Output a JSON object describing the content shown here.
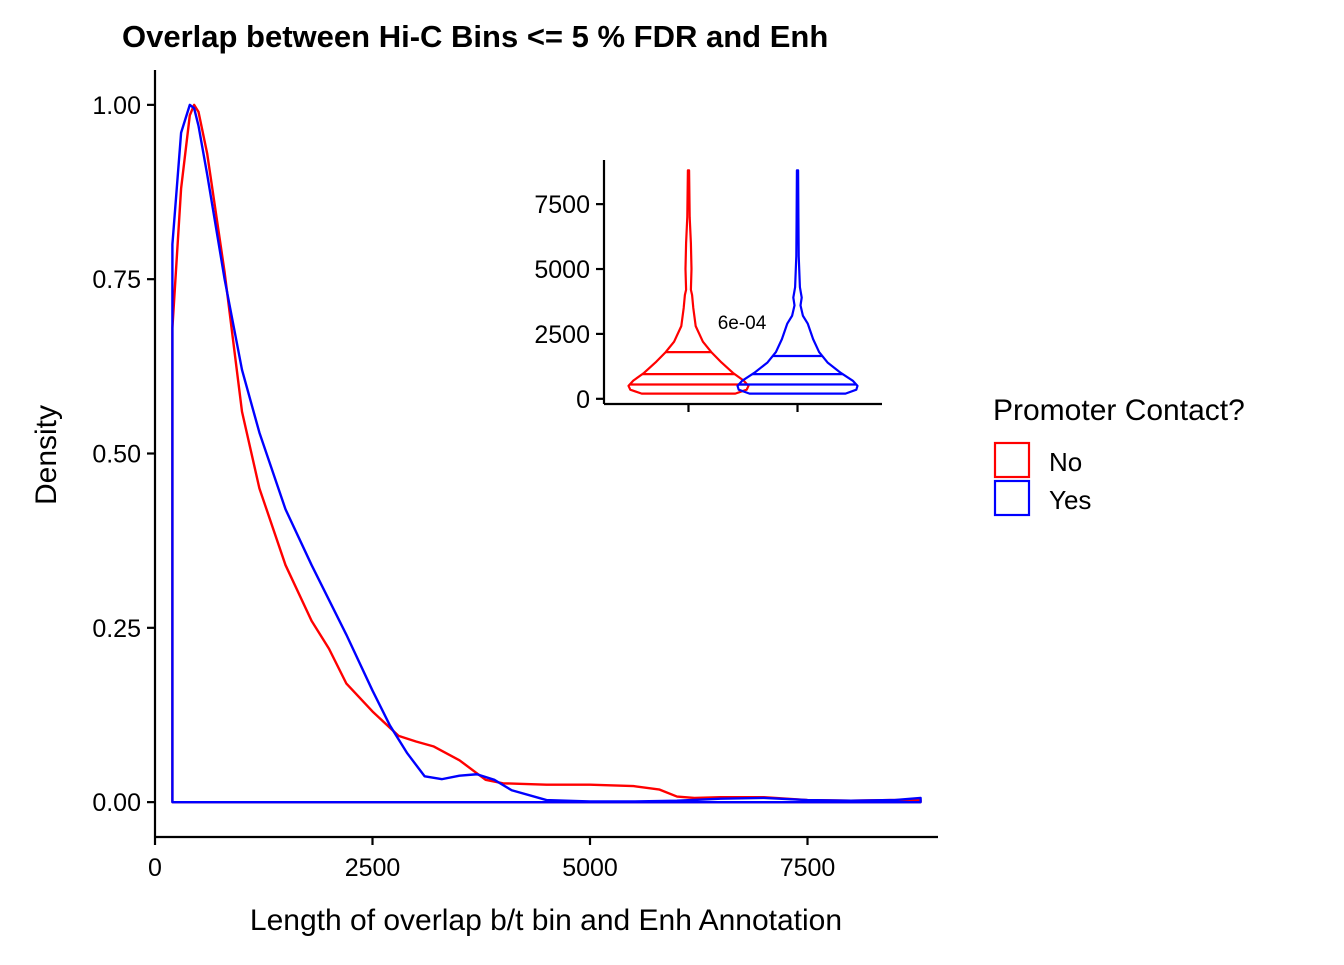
{
  "colors": {
    "No": "#ff0000",
    "Yes": "#0000ff",
    "axis": "#000000",
    "background": "#ffffff"
  },
  "chart_data": [
    {
      "type": "area",
      "kind": "density",
      "title": "Overlap between Hi-C Bins <= 5 % FDR and Enh",
      "xlabel": "Length of overlap b/t bin and Enh Annotation",
      "ylabel": "Density",
      "xlim": [
        0,
        9000
      ],
      "ylim": [
        -0.05,
        1.05
      ],
      "x_ticks": [
        0,
        2500,
        5000,
        7500
      ],
      "x_tick_labels": [
        "0",
        "2500",
        "5000",
        "7500"
      ],
      "y_ticks": [
        0,
        0.25,
        0.5,
        0.75,
        1
      ],
      "y_tick_labels": [
        "0.00",
        "0.25",
        "0.50",
        "0.75",
        "1.00"
      ],
      "grid": false,
      "legend": {
        "title": "Promoter Contact?",
        "position": "right",
        "entries": [
          "No",
          "Yes"
        ]
      },
      "series": [
        {
          "name": "No",
          "color": "#ff0000",
          "x": [
            200,
            200,
            300,
            400,
            450,
            500,
            600,
            800,
            1000,
            1200,
            1500,
            1800,
            2000,
            2200,
            2500,
            2800,
            3000,
            3200,
            3500,
            3800,
            4000,
            4500,
            5000,
            5500,
            5800,
            6000,
            6200,
            6500,
            7000,
            7500,
            8000,
            8500,
            8800,
            8800
          ],
          "y": [
            0,
            0.68,
            0.88,
            0.985,
            1.0,
            0.99,
            0.93,
            0.76,
            0.56,
            0.45,
            0.34,
            0.26,
            0.22,
            0.17,
            0.13,
            0.095,
            0.087,
            0.08,
            0.06,
            0.032,
            0.027,
            0.025,
            0.025,
            0.023,
            0.018,
            0.008,
            0.006,
            0.007,
            0.007,
            0.003,
            0.002,
            0.003,
            0.003,
            0
          ]
        },
        {
          "name": "Yes",
          "color": "#0000ff",
          "x": [
            200,
            200,
            300,
            400,
            450,
            500,
            600,
            800,
            1000,
            1200,
            1500,
            1800,
            2000,
            2200,
            2500,
            2700,
            2900,
            3100,
            3300,
            3500,
            3700,
            3900,
            4100,
            4500,
            5000,
            5500,
            6000,
            6500,
            7000,
            7500,
            8000,
            8500,
            8800,
            8800
          ],
          "y": [
            0,
            0.8,
            0.96,
            1.0,
            0.995,
            0.97,
            0.9,
            0.75,
            0.62,
            0.53,
            0.42,
            0.34,
            0.29,
            0.24,
            0.16,
            0.11,
            0.07,
            0.037,
            0.033,
            0.038,
            0.04,
            0.032,
            0.017,
            0.003,
            0.001,
            0.001,
            0.002,
            0.005,
            0.006,
            0.003,
            0.002,
            0.003,
            0.006,
            0
          ]
        }
      ]
    },
    {
      "type": "violin",
      "x_categories": [
        "No",
        "Yes"
      ],
      "ylim": [
        -200,
        9200
      ],
      "y_ticks": [
        0,
        2500,
        5000,
        7500
      ],
      "y_tick_labels": [
        "0",
        "2500",
        "5000",
        "7500"
      ],
      "annotation": "6e-04",
      "series": [
        {
          "name": "No",
          "color": "#ff0000",
          "quantiles": [
            550,
            950,
            1800
          ],
          "profile": [
            {
              "y": 200,
              "w": 0.78
            },
            {
              "y": 350,
              "w": 0.97
            },
            {
              "y": 500,
              "w": 1.0
            },
            {
              "y": 700,
              "w": 0.92
            },
            {
              "y": 1000,
              "w": 0.74
            },
            {
              "y": 1400,
              "w": 0.55
            },
            {
              "y": 1800,
              "w": 0.38
            },
            {
              "y": 2200,
              "w": 0.24
            },
            {
              "y": 2800,
              "w": 0.12
            },
            {
              "y": 3500,
              "w": 0.08
            },
            {
              "y": 4000,
              "w": 0.06
            },
            {
              "y": 4200,
              "w": 0.04
            },
            {
              "y": 5000,
              "w": 0.05
            },
            {
              "y": 6000,
              "w": 0.04
            },
            {
              "y": 7000,
              "w": 0.02
            },
            {
              "y": 8800,
              "w": 0.01
            }
          ]
        },
        {
          "name": "Yes",
          "color": "#0000ff",
          "quantiles": [
            550,
            950,
            1650
          ],
          "profile": [
            {
              "y": 200,
              "w": 0.8
            },
            {
              "y": 350,
              "w": 0.98
            },
            {
              "y": 500,
              "w": 1.0
            },
            {
              "y": 700,
              "w": 0.92
            },
            {
              "y": 1000,
              "w": 0.72
            },
            {
              "y": 1400,
              "w": 0.5
            },
            {
              "y": 1800,
              "w": 0.36
            },
            {
              "y": 2300,
              "w": 0.26
            },
            {
              "y": 2900,
              "w": 0.17
            },
            {
              "y": 3200,
              "w": 0.09
            },
            {
              "y": 3600,
              "w": 0.05
            },
            {
              "y": 3900,
              "w": 0.07
            },
            {
              "y": 4300,
              "w": 0.04
            },
            {
              "y": 5500,
              "w": 0.02
            },
            {
              "y": 7000,
              "w": 0.015
            },
            {
              "y": 8800,
              "w": 0.01
            }
          ]
        }
      ]
    }
  ]
}
